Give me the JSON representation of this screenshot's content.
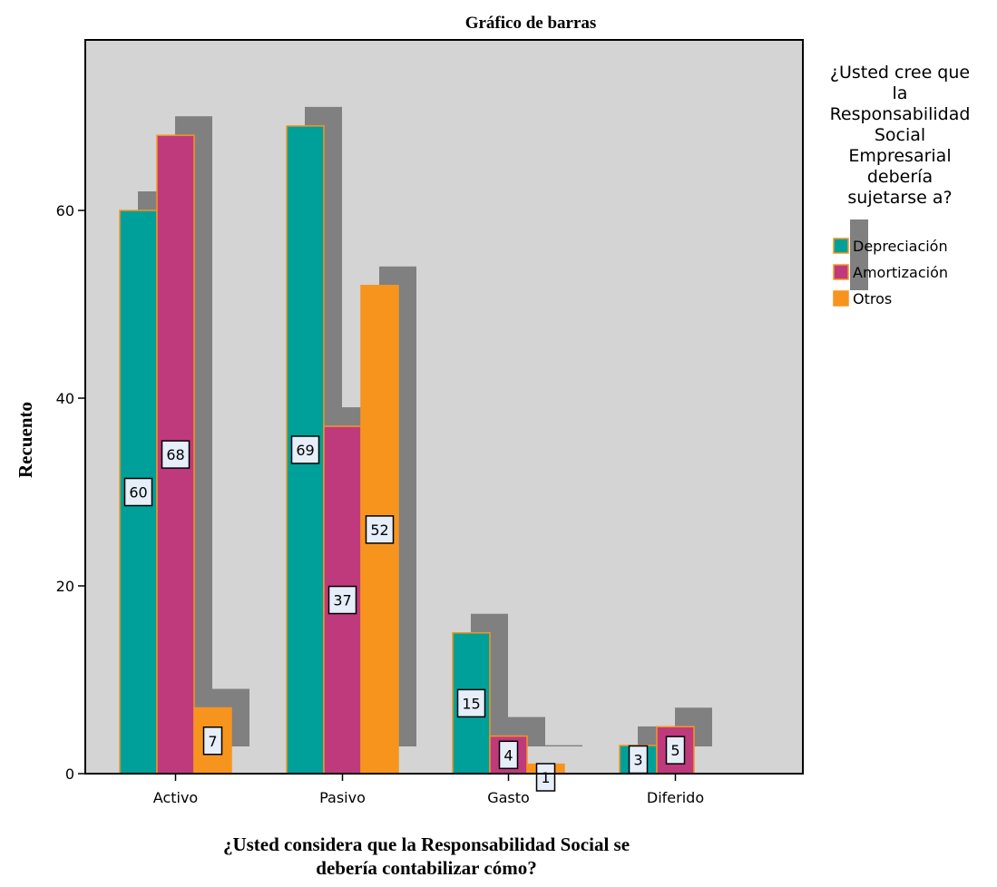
{
  "chart_data": {
    "type": "bar",
    "title": "Gráfico de barras",
    "xlabel": "¿Usted considera que la Responsabilidad Social se debería contabilizar cómo?",
    "ylabel": "Recuento",
    "categories": [
      "Activo",
      "Pasivo",
      "Gasto",
      "Diferido"
    ],
    "series": [
      {
        "name": "Depreciación",
        "color": "#00a09a",
        "values": [
          60,
          69,
          15,
          3
        ]
      },
      {
        "name": "Amortización",
        "color": "#bf3a7c",
        "values": [
          68,
          37,
          4,
          5
        ]
      },
      {
        "name": "Otros",
        "color": "#f7941e",
        "values": [
          7,
          52,
          1,
          null
        ]
      }
    ],
    "yticks": [
      0,
      20,
      40,
      60
    ],
    "ylim": [
      0,
      75
    ],
    "legend_title": "¿Usted cree que la Responsabilidad Social Empresarial debería sujetarse a?",
    "legend_position": "right",
    "plot_background": "#d4d4d4",
    "shadow_color": "#808080",
    "data_labels": true,
    "grid": false
  }
}
